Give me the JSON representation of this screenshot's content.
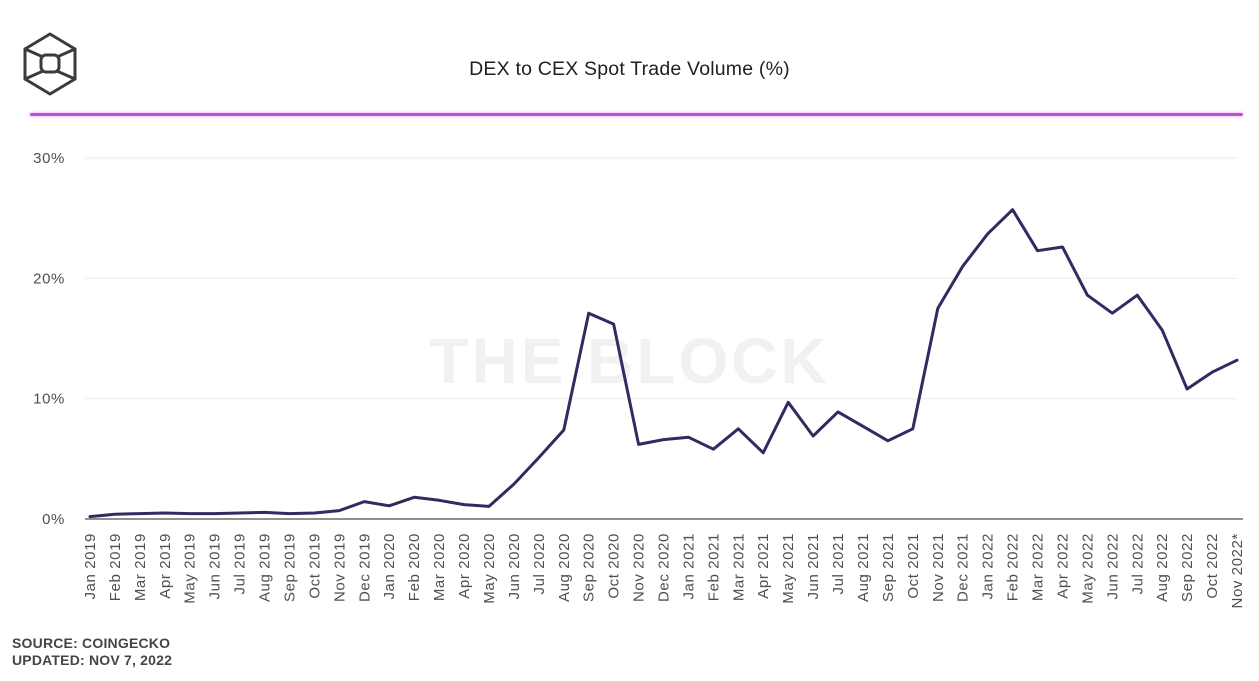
{
  "header": {
    "title": "DEX to CEX Spot Trade Volume (%)"
  },
  "watermark": "THE BLOCK",
  "footer": {
    "source": "SOURCE: COINGECKO",
    "updated": "UPDATED: NOV 7, 2022"
  },
  "colors": {
    "line": "#322a61",
    "accent_rule": "#c44be0",
    "gridline": "#ededed",
    "axis_line": "#909090",
    "tick_text": "#4f4f4f"
  },
  "chart_data": {
    "type": "line",
    "title": "DEX to CEX Spot Trade Volume (%)",
    "series_name": "DEX to CEX spot trade volume",
    "xlabel": "",
    "ylabel": "",
    "ylim": [
      0,
      32
    ],
    "yticks": [
      0,
      10,
      20,
      30
    ],
    "ytick_labels": [
      "0%",
      "10%",
      "20%",
      "30%"
    ],
    "grid": true,
    "legend": false,
    "categories": [
      "Jan 2019",
      "Feb 2019",
      "Mar 2019",
      "Apr 2019",
      "May 2019",
      "Jun 2019",
      "Jul 2019",
      "Aug 2019",
      "Sep 2019",
      "Oct 2019",
      "Nov 2019",
      "Dec 2019",
      "Jan 2020",
      "Feb 2020",
      "Mar 2020",
      "Apr 2020",
      "May 2020",
      "Jun 2020",
      "Jul 2020",
      "Aug 2020",
      "Sep 2020",
      "Oct 2020",
      "Nov 2020",
      "Dec 2020",
      "Jan 2021",
      "Feb 2021",
      "Mar 2021",
      "Apr 2021",
      "May 2021",
      "Jun 2021",
      "Jul 2021",
      "Aug 2021",
      "Sep 2021",
      "Oct 2021",
      "Nov 2021",
      "Dec 2021",
      "Jan 2022",
      "Feb 2022",
      "Mar 2022",
      "Apr 2022",
      "May 2022",
      "Jun 2022",
      "Jul 2022",
      "Aug 2022",
      "Sep 2022",
      "Oct 2022",
      "Nov 2022*"
    ],
    "values": [
      0.2,
      0.4,
      0.45,
      0.5,
      0.45,
      0.45,
      0.5,
      0.55,
      0.45,
      0.5,
      0.7,
      1.45,
      1.1,
      1.8,
      1.55,
      1.2,
      1.05,
      2.9,
      5.1,
      7.4,
      17.1,
      16.2,
      6.2,
      6.6,
      6.8,
      5.8,
      7.5,
      5.5,
      9.7,
      6.9,
      8.9,
      7.7,
      6.5,
      7.5,
      17.5,
      21.0,
      23.7,
      25.7,
      22.3,
      22.6,
      18.6,
      17.1,
      18.6,
      15.7,
      10.8,
      12.2,
      13.2
    ]
  }
}
